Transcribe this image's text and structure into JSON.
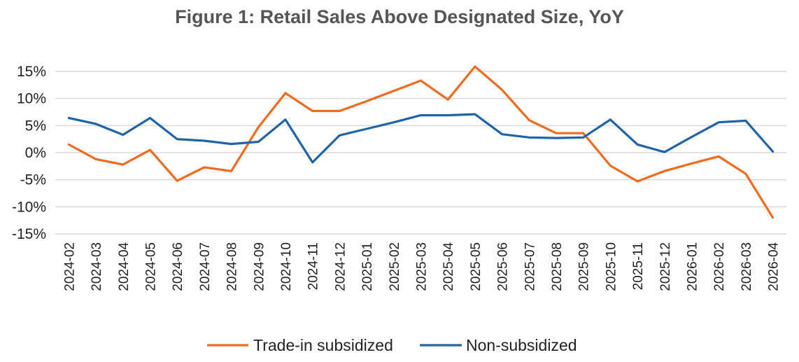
{
  "chart_data": {
    "type": "line",
    "title": "Figure 1: Retail Sales Above Designated Size, YoY",
    "xlabel": "",
    "ylabel": "",
    "ylim": [
      -15,
      15
    ],
    "yticks": [
      15,
      10,
      5,
      0,
      -5,
      -10,
      -15
    ],
    "y_tick_labels": [
      "15%",
      "10%",
      "5%",
      "0%",
      "-5%",
      "-10%",
      "-15%"
    ],
    "grid": true,
    "legend_position": "bottom",
    "categories": [
      "2024-02",
      "2024-03",
      "2024-04",
      "2024-05",
      "2024-06",
      "2024-07",
      "2024-08",
      "2024-09",
      "2024-10",
      "2024-11",
      "2024-12",
      "2025-01",
      "2025-02",
      "2025-03",
      "2025-04",
      "2025-05",
      "2025-06",
      "2025-07",
      "2025-08",
      "2025-09",
      "2025-10",
      "2025-11",
      "2025-12",
      "2026-01",
      "2026-02",
      "2026-03",
      "2026-04"
    ],
    "series": [
      {
        "name": "Trade-in subsidized",
        "color": "#f26b1d",
        "values": [
          1.5,
          -1.2,
          -2.2,
          0.5,
          -5.2,
          -2.7,
          -3.4,
          4.7,
          11.0,
          7.7,
          7.7,
          9.5,
          11.4,
          13.3,
          9.8,
          15.9,
          11.6,
          6.0,
          3.6,
          3.6,
          -2.4,
          -5.3,
          -3.4,
          -2.0,
          -0.7,
          -3.9,
          -12.0
        ]
      },
      {
        "name": "Non-subsidized",
        "color": "#1f64a8",
        "values": [
          6.4,
          5.3,
          3.3,
          6.4,
          2.5,
          2.2,
          1.6,
          2.0,
          6.1,
          -1.8,
          3.2,
          4.4,
          5.6,
          6.9,
          6.9,
          7.1,
          3.4,
          2.8,
          2.7,
          2.8,
          6.1,
          1.5,
          0.1,
          2.9,
          5.6,
          5.9,
          0.2
        ]
      }
    ]
  }
}
